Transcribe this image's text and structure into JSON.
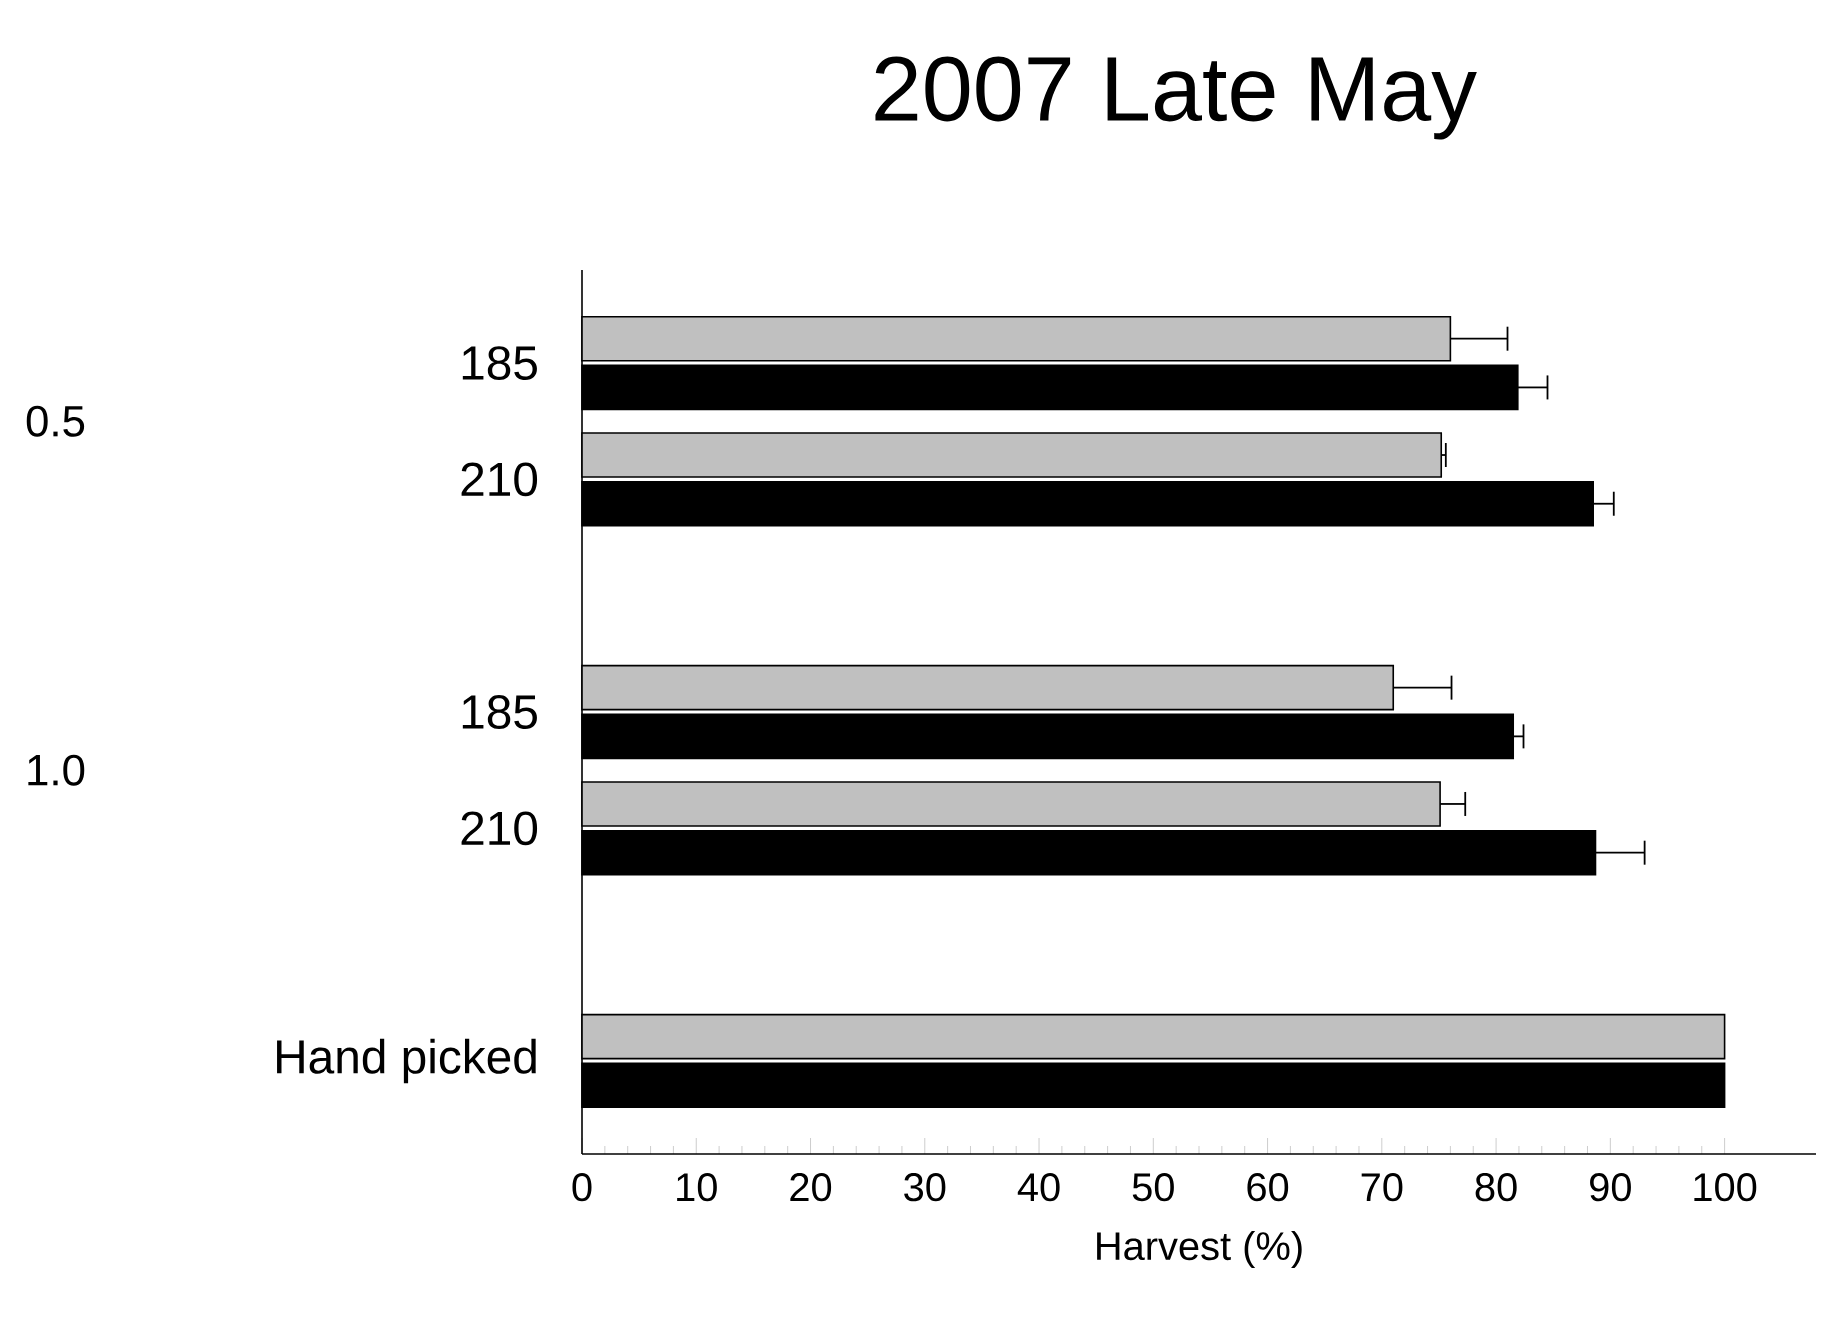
{
  "chart_data": {
    "type": "bar",
    "orientation": "horizontal",
    "title": "2007 Late May",
    "xlabel": "Harvest (%)",
    "categories": [
      "185",
      "210",
      null,
      "185",
      "210",
      null,
      "Hand picked"
    ],
    "series": [
      {
        "color": "#c0c0c0",
        "values": [
          76.0,
          75.2,
          null,
          71.0,
          75.1,
          null,
          100
        ],
        "errors": [
          [
            76.0,
            81.0
          ],
          [
            75.2,
            75.6
          ],
          null,
          [
            71.0,
            76.1
          ],
          [
            75.1,
            77.3
          ],
          null,
          null
        ]
      },
      {
        "color": "#000000",
        "values": [
          81.9,
          88.5,
          null,
          81.5,
          88.7,
          null,
          100
        ],
        "errors": [
          [
            81.9,
            84.5
          ],
          [
            88.5,
            90.3
          ],
          null,
          [
            81.5,
            82.4
          ],
          [
            88.7,
            93.0
          ],
          null,
          null
        ]
      }
    ],
    "annotations": [
      "0.5",
      "1.0"
    ],
    "xlim": [
      0,
      108
    ],
    "xticks": [
      0,
      10,
      20,
      30,
      40,
      50,
      60,
      70,
      80,
      90,
      100
    ],
    "grid": false
  }
}
